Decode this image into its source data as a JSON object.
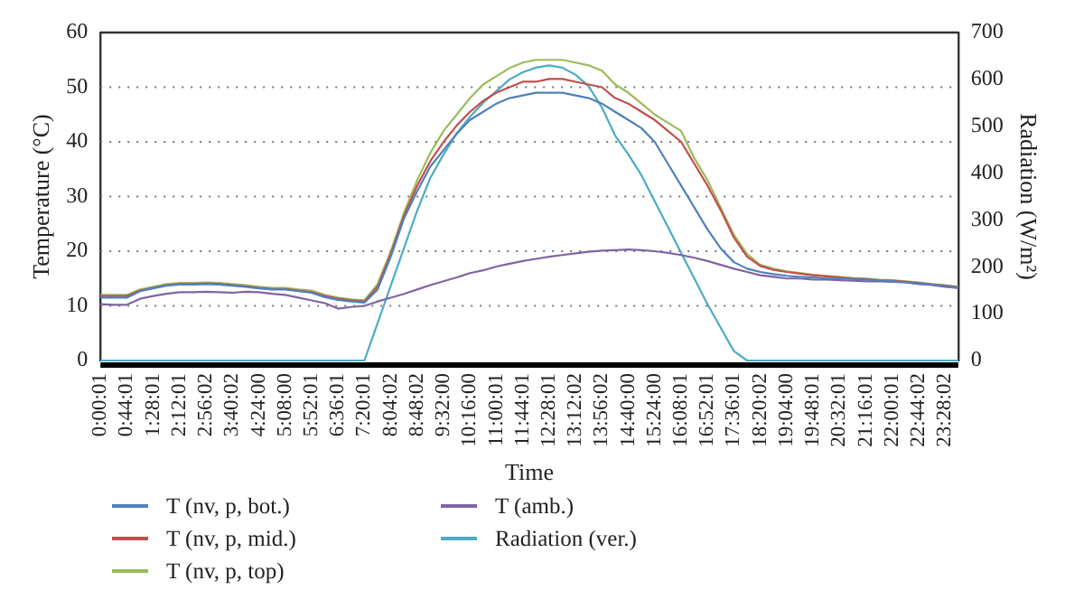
{
  "chart_data": {
    "type": "line",
    "xlabel": "Time",
    "ylabel": "Temperature (°C)",
    "y2label": "Radiation (W/m²)",
    "categories": [
      "0:00:01",
      null,
      "0:44:01",
      null,
      "1:28:01",
      null,
      "2:12:01",
      null,
      "2:56:02",
      null,
      "3:40:02",
      null,
      "4:24:00",
      null,
      "5:08:00",
      null,
      "5:52:01",
      null,
      "6:36:01",
      null,
      "7:20:01",
      null,
      "8:04:02",
      null,
      "8:48:02",
      null,
      "9:32:00",
      null,
      "10:16:00",
      null,
      "11:00:01",
      null,
      "11:44:01",
      null,
      "12:28:01",
      null,
      "13:12:02",
      null,
      "13:56:02",
      null,
      "14:40:00",
      null,
      "15:24:00",
      null,
      "16:08:01",
      null,
      "16:52:01",
      null,
      "17:36:01",
      null,
      "18:20:02",
      null,
      "19:04:00",
      null,
      "19:48:01",
      null,
      "20:32:01",
      null,
      "21:16:01",
      null,
      "22:00:01",
      null,
      "22:44:02",
      null,
      "23:28:02",
      null
    ],
    "series": [
      {
        "name": "T (nv, p, bot.)",
        "color": "#4f81bd",
        "values": [
          11.5,
          11.5,
          11.5,
          12.7,
          13.2,
          13.7,
          13.9,
          13.9,
          14,
          13.9,
          13.7,
          13.5,
          13.2,
          13,
          13,
          12.7,
          12.4,
          11.6,
          11.1,
          10.8,
          10.6,
          13,
          19,
          26,
          31,
          35.5,
          38.5,
          41.5,
          44,
          45.5,
          47,
          48,
          48.5,
          49,
          49,
          49,
          48.5,
          48,
          47,
          45.5,
          44,
          42.5,
          40,
          36,
          32,
          28,
          24,
          20.5,
          18,
          16.8,
          16.2,
          15.8,
          15.5,
          15.3,
          15.2,
          15,
          15,
          14.9,
          14.8,
          14.6,
          14.5,
          14.3,
          14.1,
          13.9,
          13.6,
          13.3
        ]
      },
      {
        "name": "T (nv, p, mid.)",
        "color": "#c0504d",
        "values": [
          11.8,
          11.8,
          11.8,
          12.8,
          13.3,
          13.8,
          14,
          14,
          14.1,
          14,
          13.8,
          13.6,
          13.3,
          13.1,
          13.1,
          12.8,
          12.5,
          11.8,
          11.3,
          11,
          10.8,
          13.5,
          19.5,
          26.5,
          32,
          36.5,
          40,
          43,
          45.5,
          47.5,
          49,
          50,
          51,
          51,
          51.5,
          51.5,
          51,
          50.5,
          50,
          48,
          47,
          45.5,
          44,
          42,
          40,
          36,
          32,
          27.5,
          22.5,
          19,
          17.3,
          16.6,
          16.2,
          15.9,
          15.6,
          15.4,
          15.2,
          15,
          14.9,
          14.7,
          14.6,
          14.4,
          14.2,
          13.9,
          13.7,
          13.4
        ]
      },
      {
        "name": "T (nv, p, top)",
        "color": "#9bbb59",
        "values": [
          12,
          12,
          12,
          13,
          13.5,
          14,
          14.2,
          14.2,
          14.3,
          14.2,
          14,
          13.8,
          13.5,
          13.3,
          13.3,
          13,
          12.8,
          12,
          11.5,
          11.2,
          11,
          14,
          20,
          27,
          33,
          38,
          42,
          45,
          48,
          50.5,
          52,
          53.5,
          54.5,
          55,
          55,
          55,
          54.5,
          54,
          53,
          50.5,
          49,
          47,
          45,
          43.5,
          42,
          37,
          33,
          28,
          23,
          19.5,
          17.5,
          16.8,
          16.3,
          16,
          15.7,
          15.5,
          15.3,
          15.1,
          15,
          14.8,
          14.7,
          14.5,
          14.3,
          14,
          13.8,
          13.5
        ]
      },
      {
        "name": "T (amb.)",
        "color": "#8064a2",
        "values": [
          10.3,
          10.2,
          10.2,
          11.3,
          11.8,
          12.2,
          12.5,
          12.5,
          12.6,
          12.5,
          12.4,
          12.6,
          12.5,
          12.2,
          12,
          11.5,
          11,
          10.5,
          9.5,
          9.8,
          10,
          10.8,
          11.5,
          12.2,
          13,
          13.8,
          14.5,
          15.2,
          16,
          16.5,
          17.2,
          17.7,
          18.2,
          18.6,
          19,
          19.3,
          19.6,
          19.9,
          20.1,
          20.2,
          20.3,
          20.2,
          20,
          19.7,
          19.3,
          18.8,
          18.2,
          17.5,
          16.8,
          16.2,
          15.6,
          15.3,
          15,
          15,
          14.8,
          14.8,
          14.7,
          14.6,
          14.5,
          14.5,
          14.4,
          14.3,
          14,
          13.8,
          13.5,
          13.3
        ]
      },
      {
        "name": "Radiation (ver.)",
        "color": "#4bacc6",
        "axis": "y2",
        "values": [
          0,
          0,
          0,
          0,
          0,
          0,
          0,
          0,
          0,
          0,
          0,
          0,
          0,
          0,
          0,
          0,
          0,
          0,
          0,
          0,
          0,
          80,
          160,
          240,
          320,
          390,
          440,
          485,
          520,
          550,
          575,
          600,
          615,
          625,
          630,
          625,
          610,
          585,
          540,
          480,
          440,
          395,
          340,
          285,
          230,
          175,
          120,
          70,
          20,
          0,
          0,
          0,
          0,
          0,
          0,
          0,
          0,
          0,
          0,
          0,
          0,
          0,
          0,
          0,
          0,
          0
        ]
      }
    ],
    "ylim": [
      0,
      60
    ],
    "yticks": [
      0,
      10,
      20,
      30,
      40,
      50,
      60
    ],
    "y2lim": [
      0,
      700
    ],
    "y2ticks": [
      0,
      100,
      200,
      300,
      400,
      500,
      600,
      700
    ],
    "grid": "y",
    "legend": "bottom"
  }
}
